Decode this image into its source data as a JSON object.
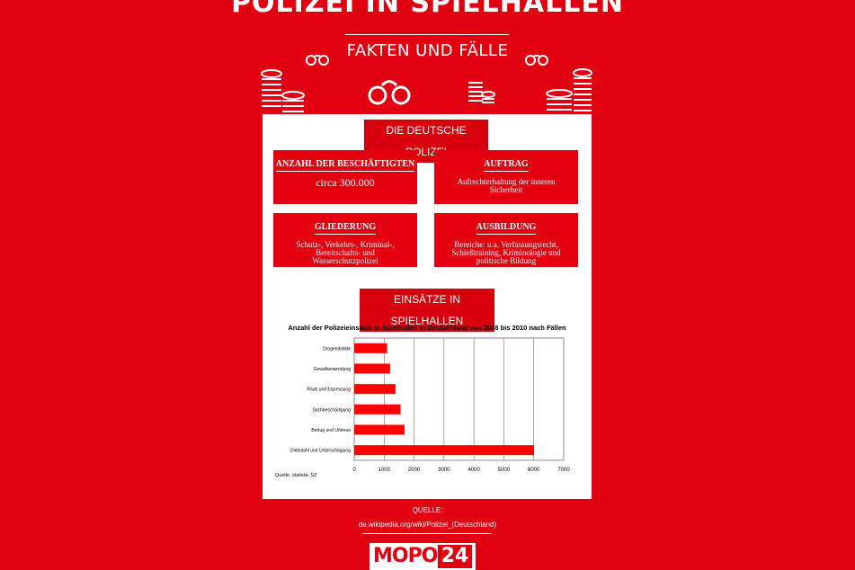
{
  "header": {
    "title": "POLIZEI IN SPIELHALLEN",
    "subtitle": "FAKTEN UND FÄLLE"
  },
  "icons": [
    "handcuffs-icon",
    "coins-stack-icon"
  ],
  "section1": {
    "title": "DIE DEUTSCHE POLIZEI",
    "boxes": [
      {
        "title": "ANZAHL DER BESCHÄFTIGTEN",
        "value": "circa 300.000"
      },
      {
        "title": "AUFTRAG",
        "value": "Aufrechterhaltung der inneren Sicherheit"
      },
      {
        "title": "GLIEDERUNG",
        "value": "Schutz-, Verkehrs-, Kriminal-, Bereitschafts- und Wasserschutzpolizei"
      },
      {
        "title": "AUSBILDUNG",
        "value": "Bereiche: u.a. Verfassungsrecht, Schießtraining, Kriminologie und politische Bildung"
      }
    ]
  },
  "section2": {
    "title": "EINSÄTZE IN SPIELHALLEN"
  },
  "chart_data": {
    "type": "bar",
    "orientation": "horizontal",
    "title": "Anzahl der Polizeieinsätze in Spielhallen in Deutschland von 2008 bis 2010 nach Fällen",
    "categories": [
      "Drogendelikte",
      "Gewaltanwendung",
      "Raub und Erpressung",
      "Sachbeschädigung",
      "Betrug und Untreue",
      "Diebstahl und Unterschlagung"
    ],
    "values": [
      1100,
      1200,
      1380,
      1550,
      1680,
      6000
    ],
    "xlim": [
      0,
      7000
    ],
    "ticks": [
      "0",
      "1000",
      "2000",
      "3000",
      "4000",
      "5000",
      "6000",
      "7000"
    ],
    "grid": true,
    "bar_color": "#ff0000",
    "source_note": "Quelle: statista; SZ"
  },
  "footer": {
    "source_label": "QUELLE:",
    "source_url": "de.wikipedia.org/wiki/Polizei_(Deutschland)",
    "logo_text": "MOPO",
    "logo_number": "24"
  },
  "colors": {
    "background": "#e1000f",
    "card": "#ffffff",
    "box": "#e3000f"
  }
}
